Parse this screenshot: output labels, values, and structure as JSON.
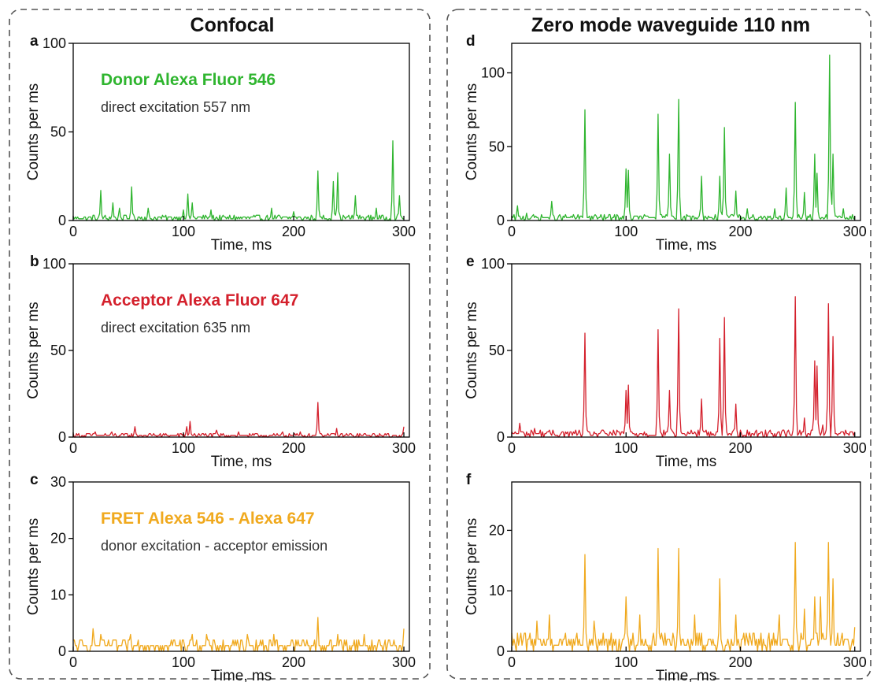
{
  "columns": [
    {
      "title": "Confocal"
    },
    {
      "title": "Zero mode waveguide 110 nm"
    }
  ],
  "colors": {
    "donor": "#2fb52f",
    "acceptor": "#d4202c",
    "fret": "#f0a91e",
    "text": "#333333"
  },
  "chart_data": [
    {
      "id": "a",
      "letter": "a",
      "type": "line",
      "color": "#2fb52f",
      "title": "Donor Alexa Fluor 546",
      "subtitle": "direct excitation 557 nm",
      "xlabel": "Time, ms",
      "ylabel": "Counts per ms",
      "xlim": [
        0,
        305
      ],
      "ylim": [
        0,
        100
      ],
      "xticks": [
        0,
        100,
        200,
        300
      ],
      "yticks": [
        0,
        50,
        100
      ],
      "noise_max": 3,
      "peaks": [
        [
          25,
          17
        ],
        [
          36,
          10
        ],
        [
          42,
          7
        ],
        [
          53,
          19
        ],
        [
          68,
          7
        ],
        [
          100,
          6
        ],
        [
          104,
          15
        ],
        [
          108,
          10
        ],
        [
          125,
          6
        ],
        [
          180,
          7
        ],
        [
          200,
          5
        ],
        [
          222,
          28
        ],
        [
          236,
          22
        ],
        [
          240,
          27
        ],
        [
          256,
          14
        ],
        [
          275,
          7
        ],
        [
          290,
          45
        ],
        [
          296,
          14
        ]
      ]
    },
    {
      "id": "b",
      "letter": "b",
      "type": "line",
      "color": "#d4202c",
      "title": "Acceptor Alexa Fluor 647",
      "subtitle": "direct excitation 635 nm",
      "xlabel": "Time, ms",
      "ylabel": "Counts per ms",
      "xlim": [
        0,
        305
      ],
      "ylim": [
        0,
        100
      ],
      "xticks": [
        0,
        100,
        200,
        300
      ],
      "yticks": [
        0,
        50,
        100
      ],
      "noise_max": 2,
      "peaks": [
        [
          20,
          3
        ],
        [
          35,
          3
        ],
        [
          56,
          6
        ],
        [
          103,
          6
        ],
        [
          106,
          9
        ],
        [
          130,
          4
        ],
        [
          150,
          3
        ],
        [
          190,
          3
        ],
        [
          206,
          3
        ],
        [
          222,
          20
        ],
        [
          239,
          5
        ],
        [
          300,
          6
        ]
      ]
    },
    {
      "id": "c",
      "letter": "c",
      "type": "line",
      "color": "#f0a91e",
      "title": "FRET Alexa 546 - Alexa 647",
      "subtitle": "donor excitation - acceptor emission",
      "xlabel": "Time, ms",
      "ylabel": "Counts per ms",
      "xlim": [
        0,
        305
      ],
      "ylim": [
        0,
        30
      ],
      "xticks": [
        0,
        100,
        200,
        300
      ],
      "yticks": [
        0,
        10,
        20,
        30
      ],
      "noise_max": 2,
      "peaks": [
        [
          18,
          4
        ],
        [
          25,
          3
        ],
        [
          52,
          3
        ],
        [
          100,
          2
        ],
        [
          108,
          3
        ],
        [
          121,
          3
        ],
        [
          158,
          3
        ],
        [
          182,
          3
        ],
        [
          222,
          6
        ],
        [
          240,
          3
        ],
        [
          264,
          3
        ],
        [
          300,
          4
        ]
      ]
    },
    {
      "id": "d",
      "letter": "d",
      "type": "line",
      "color": "#2fb52f",
      "title": "",
      "subtitle": "",
      "xlabel": "Time, ms",
      "ylabel": "Counts per ms",
      "xlim": [
        0,
        305
      ],
      "ylim": [
        0,
        120
      ],
      "xticks": [
        0,
        100,
        200,
        300
      ],
      "yticks": [
        0,
        50,
        100
      ],
      "noise_max": 4,
      "peaks": [
        [
          5,
          10
        ],
        [
          13,
          5
        ],
        [
          35,
          13
        ],
        [
          64,
          75
        ],
        [
          100,
          35
        ],
        [
          102,
          34
        ],
        [
          128,
          72
        ],
        [
          138,
          45
        ],
        [
          146,
          82
        ],
        [
          166,
          30
        ],
        [
          182,
          30
        ],
        [
          186,
          63
        ],
        [
          196,
          20
        ],
        [
          206,
          8
        ],
        [
          230,
          8
        ],
        [
          240,
          22
        ],
        [
          248,
          80
        ],
        [
          256,
          19
        ],
        [
          265,
          45
        ],
        [
          267,
          32
        ],
        [
          278,
          112
        ],
        [
          281,
          45
        ],
        [
          290,
          8
        ]
      ]
    },
    {
      "id": "e",
      "letter": "e",
      "type": "line",
      "color": "#d4202c",
      "title": "",
      "subtitle": "",
      "xlabel": "Time, ms",
      "ylabel": "Counts per ms",
      "xlim": [
        0,
        305
      ],
      "ylim": [
        0,
        100
      ],
      "xticks": [
        0,
        100,
        200,
        300
      ],
      "yticks": [
        0,
        50,
        100
      ],
      "noise_max": 4,
      "peaks": [
        [
          7,
          8
        ],
        [
          20,
          5
        ],
        [
          64,
          60
        ],
        [
          100,
          27
        ],
        [
          102,
          30
        ],
        [
          128,
          62
        ],
        [
          138,
          27
        ],
        [
          146,
          74
        ],
        [
          166,
          22
        ],
        [
          182,
          57
        ],
        [
          186,
          69
        ],
        [
          196,
          19
        ],
        [
          248,
          81
        ],
        [
          256,
          11
        ],
        [
          265,
          44
        ],
        [
          267,
          41
        ],
        [
          272,
          7
        ],
        [
          277,
          77
        ],
        [
          281,
          58
        ]
      ]
    },
    {
      "id": "f",
      "letter": "f",
      "type": "line",
      "color": "#f0a91e",
      "title": "",
      "subtitle": "",
      "xlabel": "Time, ms",
      "ylabel": "Counts per ms",
      "xlim": [
        0,
        305
      ],
      "ylim": [
        0,
        28
      ],
      "xticks": [
        0,
        100,
        200,
        300
      ],
      "yticks": [
        0,
        10,
        20
      ],
      "noise_max": 3,
      "peaks": [
        [
          22,
          5
        ],
        [
          33,
          6
        ],
        [
          64,
          16
        ],
        [
          72,
          5
        ],
        [
          100,
          9
        ],
        [
          112,
          6
        ],
        [
          128,
          17
        ],
        [
          146,
          17
        ],
        [
          160,
          6
        ],
        [
          182,
          12
        ],
        [
          196,
          6
        ],
        [
          234,
          6
        ],
        [
          248,
          18
        ],
        [
          256,
          7
        ],
        [
          265,
          9
        ],
        [
          270,
          9
        ],
        [
          277,
          18
        ],
        [
          281,
          12
        ],
        [
          300,
          4
        ]
      ]
    }
  ]
}
